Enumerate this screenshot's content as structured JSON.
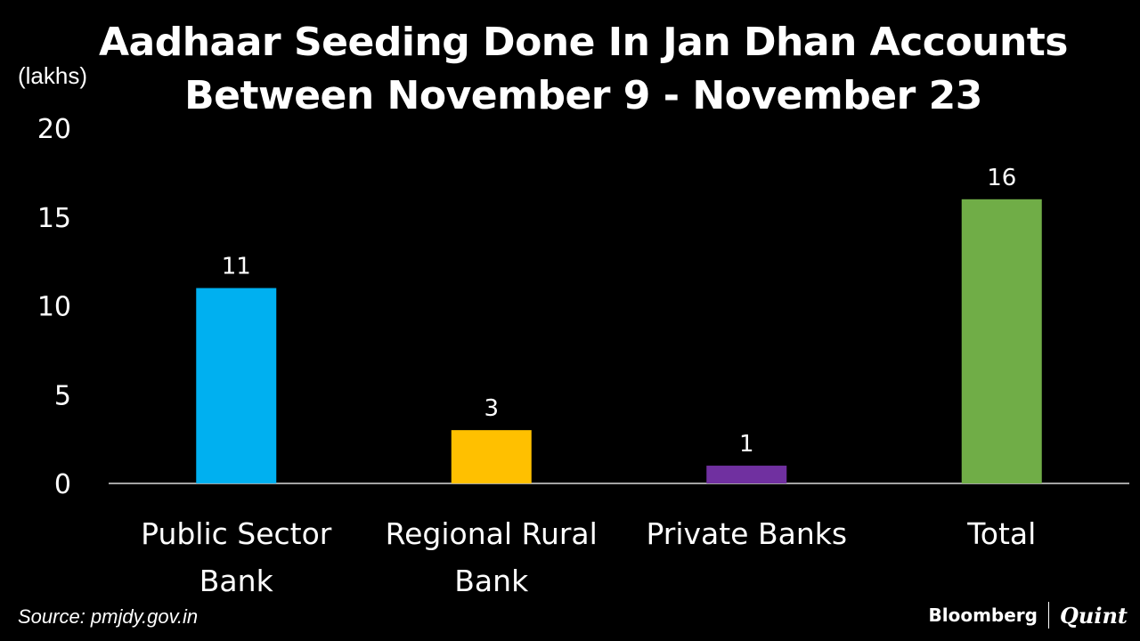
{
  "title_lines": [
    "Aadhaar Seeding Done In Jan Dhan Accounts",
    "Between November 9 - November 23"
  ],
  "unit_label": "(lakhs)",
  "chart_data": {
    "type": "bar",
    "title": "Aadhaar Seeding Done In Jan Dhan Accounts Between November 9 - November 23",
    "categories": [
      [
        "Public Sector",
        "Bank"
      ],
      [
        "Regional Rural",
        "Bank"
      ],
      [
        "Private Banks"
      ],
      [
        "Total"
      ]
    ],
    "values": [
      11,
      3,
      1,
      16
    ],
    "colors": [
      "#00b0f0",
      "#ffc000",
      "#7030a0",
      "#70ad47"
    ],
    "ylim": [
      0,
      20
    ],
    "yticks": [
      0,
      5,
      10,
      15,
      20
    ],
    "ylabel": "(lakhs)",
    "data_labels": true,
    "grid": false
  },
  "source": "Source: pmjdy.gov.in",
  "brand": {
    "left": "Bloomberg",
    "right": "Quint"
  }
}
